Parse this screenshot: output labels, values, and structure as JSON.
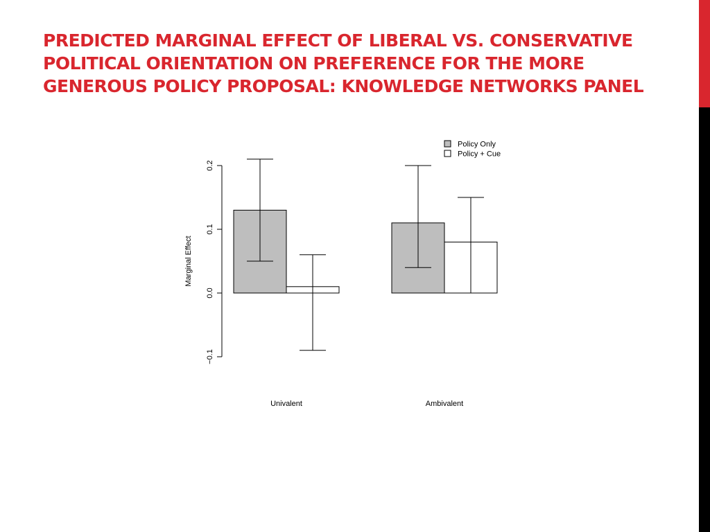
{
  "title": "Predicted Marginal Effect of Liberal vs. Conservative Political Orientation on Preference for the More Generous Policy Proposal: Knowledge Networks Panel",
  "colors": {
    "title": "#d9262e",
    "accent_red": "#d9262e",
    "accent_black": "#000000",
    "policy_only_fill": "#bebebe",
    "policy_cue_fill": "#ffffff"
  },
  "chart_data": {
    "type": "bar",
    "ylabel": "Marginal Effect",
    "ylim": [
      -0.1,
      0.2
    ],
    "yticks": [
      -0.1,
      0.0,
      0.1,
      0.2
    ],
    "ytick_labels": [
      "−0.1",
      "0.0",
      "0.1",
      "0.2"
    ],
    "categories": [
      "Univalent",
      "Ambivalent"
    ],
    "legend_position": "top-right",
    "series": [
      {
        "name": "Policy Only",
        "values": [
          0.13,
          0.11
        ],
        "lower": [
          0.05,
          0.04
        ],
        "upper": [
          0.21,
          0.2
        ]
      },
      {
        "name": "Policy + Cue",
        "values": [
          0.01,
          0.08
        ],
        "lower": [
          -0.09,
          0.0
        ],
        "upper": [
          0.06,
          0.15
        ]
      }
    ]
  }
}
